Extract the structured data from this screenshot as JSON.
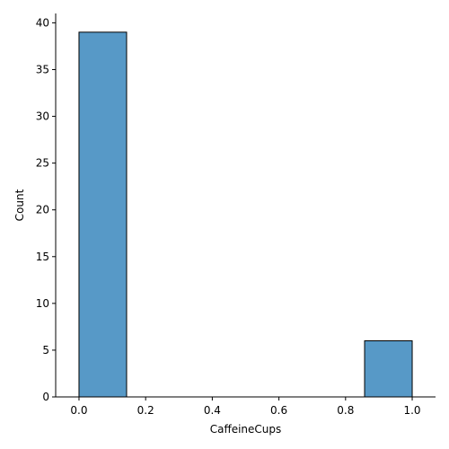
{
  "chart_data": {
    "type": "bar",
    "xlabel": "CaffeineCups",
    "ylabel": "Count",
    "xlim": [
      -0.07,
      1.07
    ],
    "ylim": [
      0,
      41
    ],
    "bins": [
      {
        "start": 0.0,
        "end": 0.142857,
        "count": 39
      },
      {
        "start": 0.857143,
        "end": 1.0,
        "count": 6
      }
    ],
    "xticks": [
      "0.0",
      "0.2",
      "0.4",
      "0.6",
      "0.8",
      "1.0"
    ],
    "yticks": [
      "0",
      "5",
      "10",
      "15",
      "20",
      "25",
      "30",
      "35",
      "40"
    ],
    "bar_color": "#5799c7",
    "edge_color": "#000000",
    "grid": false,
    "legend": "none"
  }
}
